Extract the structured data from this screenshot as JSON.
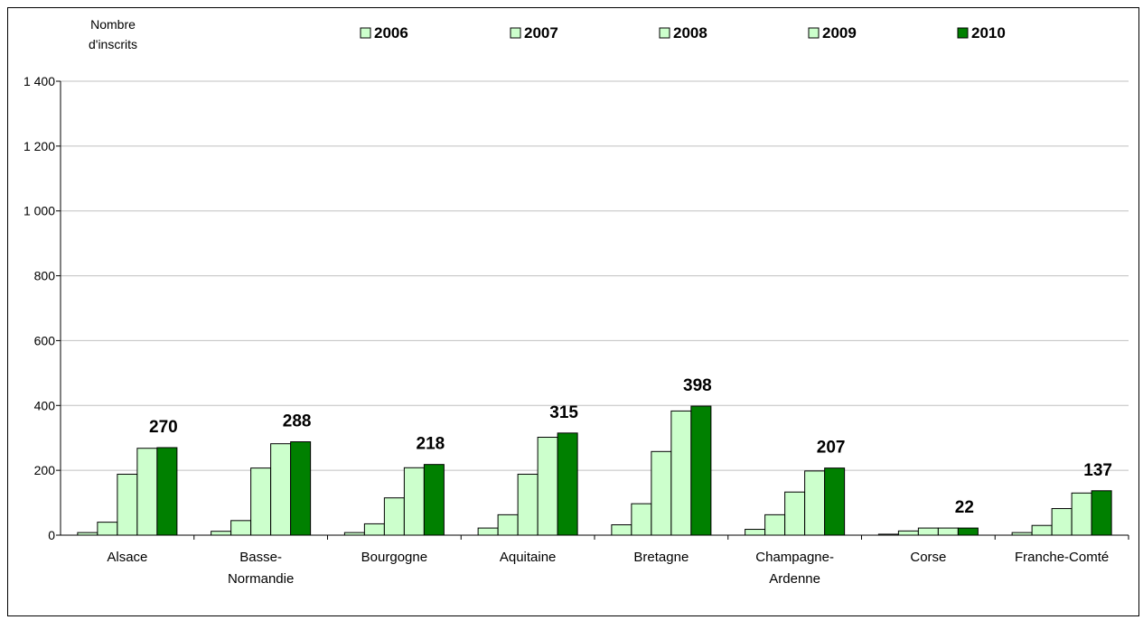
{
  "chart_data": {
    "type": "bar",
    "ylabel": [
      "Nombre",
      "d'inscrits"
    ],
    "ylim": [
      0,
      1400
    ],
    "yticks": [
      0,
      200,
      400,
      600,
      800,
      1000,
      1200,
      1400
    ],
    "ytick_labels": [
      "0",
      "200",
      "400",
      "600",
      "800",
      "1 000",
      "1 200",
      "1 400"
    ],
    "grid": true,
    "legend_position": "top",
    "categories": [
      [
        "Alsace"
      ],
      [
        "Basse-",
        "Normandie"
      ],
      [
        "Bourgogne"
      ],
      [
        "Aquitaine"
      ],
      [
        "Bretagne"
      ],
      [
        "Champagne-",
        "Ardenne"
      ],
      [
        "Corse"
      ],
      [
        "Franche-Comté"
      ]
    ],
    "series": [
      {
        "name": "2006",
        "color": "#ccffcc",
        "values": [
          8,
          12,
          8,
          22,
          32,
          18,
          3,
          8
        ]
      },
      {
        "name": "2007",
        "color": "#ccffcc",
        "values": [
          40,
          45,
          35,
          63,
          97,
          63,
          13,
          30
        ]
      },
      {
        "name": "2008",
        "color": "#ccffcc",
        "values": [
          188,
          207,
          115,
          188,
          258,
          133,
          22,
          82
        ]
      },
      {
        "name": "2009",
        "color": "#ccffcc",
        "values": [
          268,
          282,
          208,
          302,
          383,
          198,
          22,
          130
        ]
      },
      {
        "name": "2010",
        "color": "#008000",
        "values": [
          270,
          288,
          218,
          315,
          398,
          207,
          22,
          137
        ]
      }
    ],
    "data_labels": [
      "270",
      "288",
      "218",
      "315",
      "398",
      "207",
      "22",
      "137"
    ]
  }
}
